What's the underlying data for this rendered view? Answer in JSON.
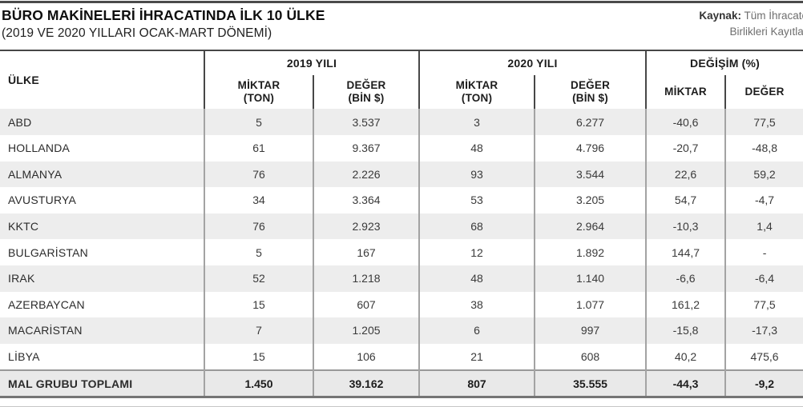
{
  "page": {
    "title": "BÜRO MAKİNELERİ İHRACATINDA İLK 10 ÜLKE",
    "subtitle": "(2019 VE 2020 YILLARI OCAK-MART DÖNEMİ)"
  },
  "source": {
    "label": "Kaynak:",
    "line1": "Tüm İhracatçı",
    "line2": "Birlikleri Kayıtları"
  },
  "colors": {
    "stripe": "#ededed",
    "total_row_bg": "#e9e9e9",
    "rule_dark": "#474747",
    "divider_gray": "#a3a3a3"
  },
  "chart_data": {
    "type": "table",
    "title": "BÜRO MAKİNELERİ İHRACATINDA İLK 10 ÜLKE",
    "subtitle": "(2019 VE 2020 YILLARI OCAK-MART DÖNEMİ)",
    "header": {
      "country": "ÜLKE",
      "groups": [
        {
          "label": "2019 YILI",
          "cols": [
            {
              "l1": "MİKTAR",
              "l2": "(TON)"
            },
            {
              "l1": "DEĞER",
              "l2": "(BİN $)"
            }
          ]
        },
        {
          "label": "2020 YILI",
          "cols": [
            {
              "l1": "MİKTAR",
              "l2": "(TON)"
            },
            {
              "l1": "DEĞER",
              "l2": "(BİN $)"
            }
          ]
        },
        {
          "label": "DEĞİŞİM (%)",
          "cols": [
            {
              "l1": "MİKTAR",
              "l2": ""
            },
            {
              "l1": "DEĞER",
              "l2": ""
            }
          ]
        }
      ]
    },
    "columns_flat": [
      "ÜLKE",
      "2019 MİKTAR (TON)",
      "2019 DEĞER (BİN $)",
      "2020 MİKTAR (TON)",
      "2020 DEĞER (BİN $)",
      "DEĞİŞİM MİKTAR (%)",
      "DEĞİŞİM DEĞER (%)"
    ],
    "rows": [
      [
        "ABD",
        "5",
        "3.537",
        "3",
        "6.277",
        "-40,6",
        "77,5"
      ],
      [
        "HOLLANDA",
        "61",
        "9.367",
        "48",
        "4.796",
        "-20,7",
        "-48,8"
      ],
      [
        "ALMANYA",
        "76",
        "2.226",
        "93",
        "3.544",
        "22,6",
        "59,2"
      ],
      [
        "AVUSTURYA",
        "34",
        "3.364",
        "53",
        "3.205",
        "54,7",
        "-4,7"
      ],
      [
        "KKTC",
        "76",
        "2.923",
        "68",
        "2.964",
        "-10,3",
        "1,4"
      ],
      [
        "BULGARİSTAN",
        "5",
        "167",
        "12",
        "1.892",
        "144,7",
        "-"
      ],
      [
        "IRAK",
        "52",
        "1.218",
        "48",
        "1.140",
        "-6,6",
        "-6,4"
      ],
      [
        "AZERBAYCAN",
        "15",
        "607",
        "38",
        "1.077",
        "161,2",
        "77,5"
      ],
      [
        "MACARİSTAN",
        "7",
        "1.205",
        "6",
        "997",
        "-15,8",
        "-17,3"
      ],
      [
        "LİBYA",
        "15",
        "106",
        "21",
        "608",
        "40,2",
        "475,6"
      ]
    ],
    "total": [
      "MAL GRUBU TOPLAMI",
      "1.450",
      "39.162",
      "807",
      "35.555",
      "-44,3",
      "-9,2"
    ]
  }
}
